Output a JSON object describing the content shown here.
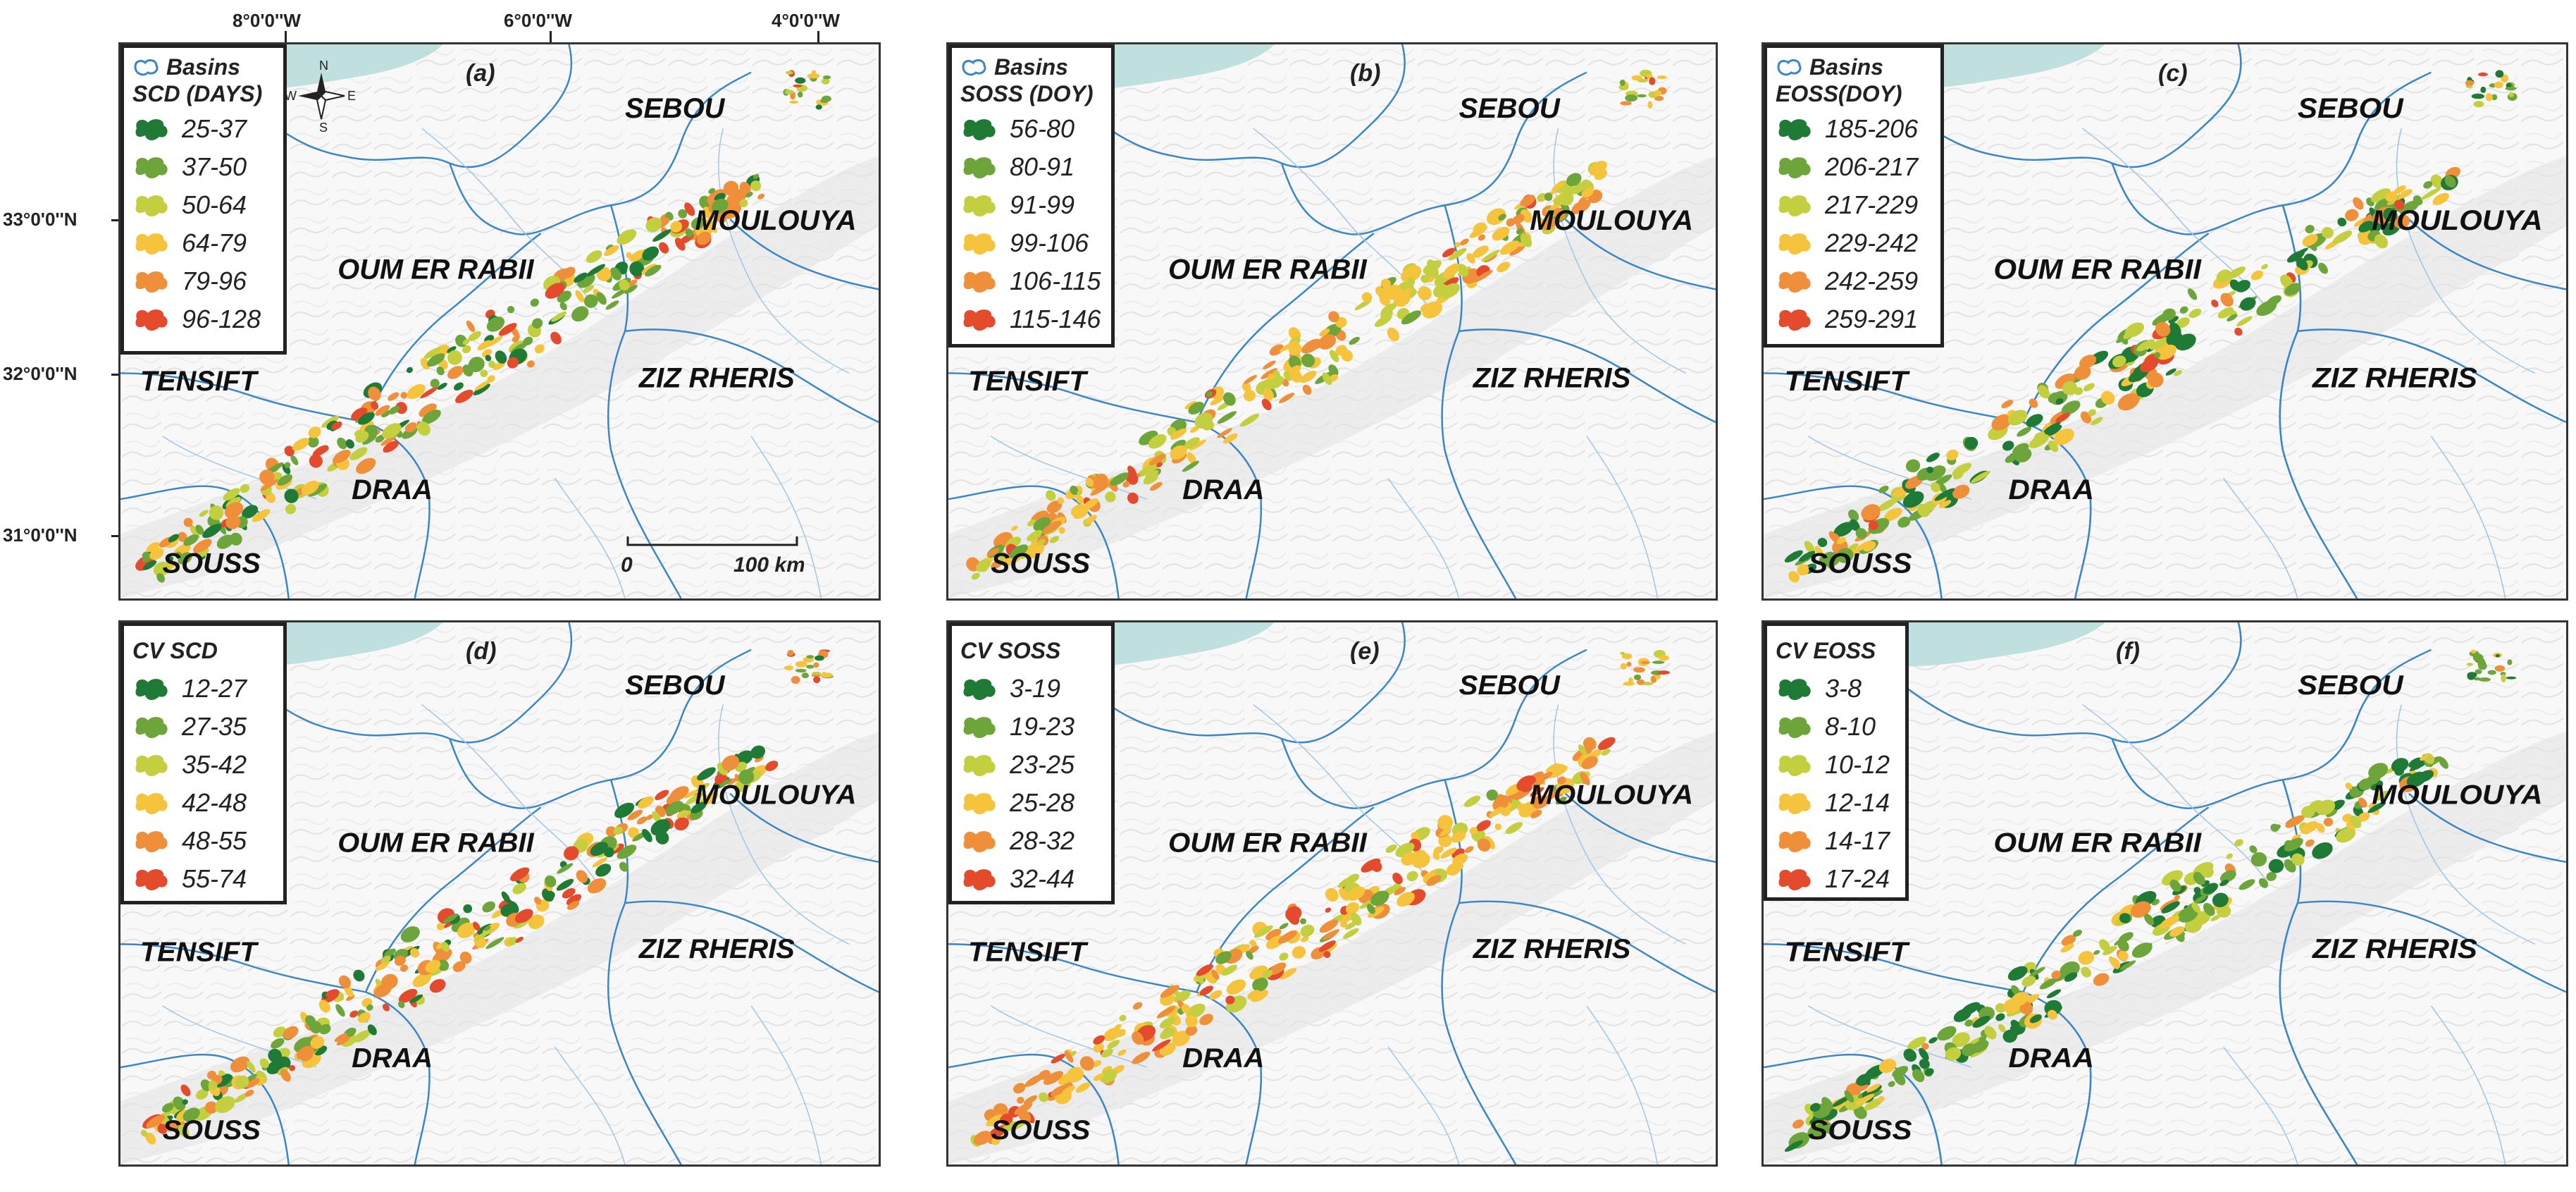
{
  "longitudes": [
    "8°0'0''W",
    "6°0'0''W",
    "4°0'0''W"
  ],
  "latitudes": [
    "33°0'0''N",
    "32°0'0''N",
    "31°0'0''N"
  ],
  "basin_names": {
    "sebou": "SEBOU",
    "moulouya": "MOULOUYA",
    "oum": "OUM ER RABII",
    "tensift": "TENSIFT",
    "ziz": "ZIZ RHERIS",
    "draa": "DRAA",
    "souss": "SOUSS"
  },
  "compass": {
    "n": "N",
    "s": "S",
    "e": "E",
    "w": "W"
  },
  "scale": {
    "zero": "0",
    "end": "100 km"
  },
  "class_colors": [
    "#1f7a35",
    "#6da53a",
    "#c4cf3f",
    "#f5c33c",
    "#ef8f3a",
    "#e34b2c"
  ],
  "basin_line_color": "#3a86c8",
  "sea_color": "#bfe0de",
  "panels": [
    {
      "label": "(a)",
      "basins_label": "Basins",
      "legend_title": "SCD (DAYS)",
      "classes": [
        "25-37",
        "37-50",
        "50-64",
        "64-79",
        "79-96",
        "96-128"
      ]
    },
    {
      "label": "(b)",
      "basins_label": "Basins",
      "legend_title": "SOSS (DOY)",
      "classes": [
        "56-80",
        "80-91",
        "91-99",
        "99-106",
        "106-115",
        "115-146"
      ]
    },
    {
      "label": "(c)",
      "basins_label": "Basins",
      "legend_title": "EOSS(DOY)",
      "classes": [
        "185-206",
        "206-217",
        "217-229",
        "229-242",
        "242-259",
        "259-291"
      ]
    },
    {
      "label": "(d)",
      "legend_title": "CV SCD",
      "classes": [
        "12-27",
        "27-35",
        "35-42",
        "42-48",
        "48-55",
        "55-74"
      ]
    },
    {
      "label": "(e)",
      "legend_title": "CV SOSS",
      "classes": [
        "3-19",
        "19-23",
        "23-25",
        "25-28",
        "28-32",
        "32-44"
      ]
    },
    {
      "label": "(f)",
      "legend_title": "CV EOSS",
      "classes": [
        "3-8",
        "8-10",
        "10-12",
        "12-14",
        "14-17",
        "17-24"
      ]
    }
  ]
}
